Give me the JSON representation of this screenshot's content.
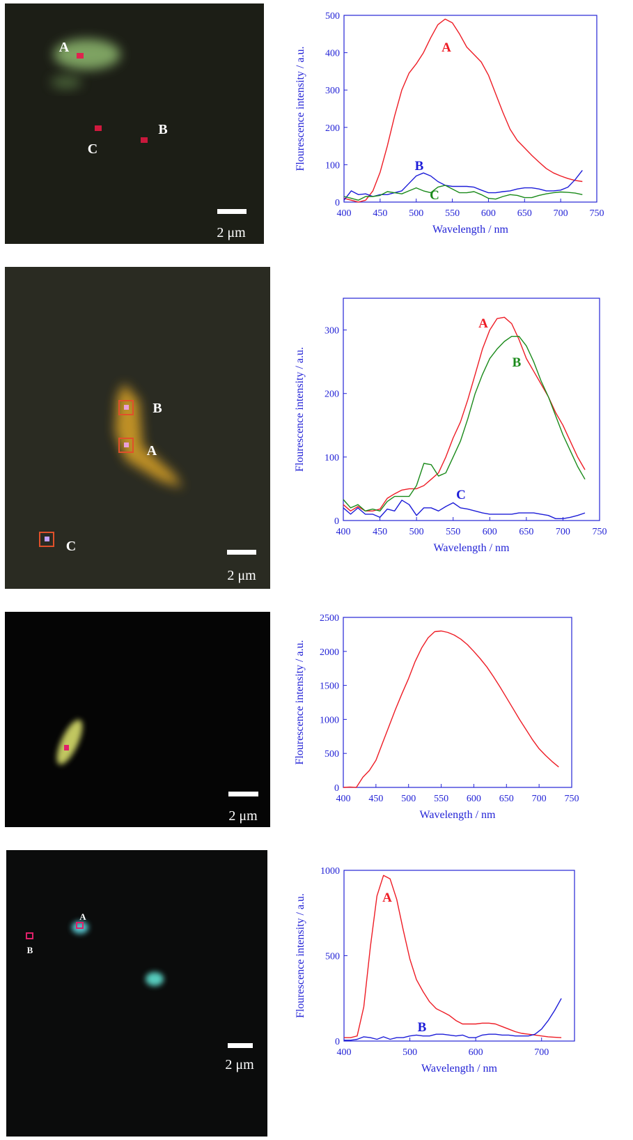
{
  "chart_data": [
    {
      "type": "line",
      "xlabel": "Wavelength / nm",
      "ylabel": "Flourescence intensity / a.u.",
      "x": [
        400,
        410,
        420,
        430,
        440,
        450,
        460,
        470,
        480,
        490,
        500,
        510,
        520,
        530,
        540,
        550,
        560,
        570,
        580,
        590,
        600,
        610,
        620,
        630,
        640,
        650,
        660,
        670,
        680,
        690,
        700,
        710,
        720,
        730
      ],
      "xlim": [
        400,
        750
      ],
      "ylim": [
        0,
        500
      ],
      "xticks": [
        400,
        450,
        500,
        550,
        600,
        650,
        700,
        750
      ],
      "yticks": [
        0,
        100,
        200,
        300,
        400,
        500
      ],
      "series": [
        {
          "name": "A",
          "color": "#ee1c25",
          "values": [
            10,
            5,
            0,
            5,
            30,
            80,
            150,
            230,
            300,
            345,
            370,
            400,
            440,
            475,
            490,
            480,
            450,
            415,
            395,
            375,
            340,
            290,
            240,
            195,
            165,
            145,
            125,
            107,
            90,
            78,
            70,
            63,
            58,
            55
          ]
        },
        {
          "name": "B",
          "color": "#1c1cd8",
          "values": [
            5,
            30,
            20,
            22,
            15,
            20,
            20,
            25,
            30,
            50,
            70,
            78,
            70,
            55,
            45,
            42,
            42,
            42,
            40,
            32,
            25,
            25,
            28,
            30,
            35,
            38,
            38,
            35,
            30,
            30,
            32,
            40,
            60,
            85
          ]
        },
        {
          "name": "C",
          "color": "#1a8a1a",
          "values": [
            15,
            10,
            5,
            15,
            15,
            18,
            28,
            25,
            22,
            30,
            38,
            30,
            25,
            40,
            45,
            35,
            25,
            25,
            28,
            20,
            10,
            8,
            15,
            20,
            18,
            12,
            12,
            18,
            22,
            25,
            27,
            26,
            24,
            20
          ]
        }
      ]
    },
    {
      "type": "line",
      "xlabel": "Wavelength / nm",
      "ylabel": "Flourescence intensity / a.u.",
      "x": [
        400,
        410,
        420,
        430,
        440,
        450,
        460,
        470,
        480,
        490,
        500,
        510,
        520,
        530,
        540,
        550,
        560,
        570,
        580,
        590,
        600,
        610,
        620,
        630,
        640,
        650,
        660,
        670,
        680,
        690,
        700,
        710,
        720,
        730
      ],
      "xlim": [
        400,
        750
      ],
      "ylim": [
        0,
        350
      ],
      "xticks": [
        400,
        450,
        500,
        550,
        600,
        650,
        700,
        750
      ],
      "yticks": [
        0,
        100,
        200,
        300
      ],
      "series": [
        {
          "name": "A",
          "color": "#ee1c25",
          "values": [
            25,
            15,
            22,
            15,
            15,
            18,
            35,
            42,
            48,
            50,
            50,
            55,
            65,
            75,
            100,
            130,
            155,
            190,
            230,
            270,
            300,
            318,
            320,
            310,
            285,
            255,
            235,
            215,
            195,
            170,
            150,
            125,
            100,
            80
          ]
        },
        {
          "name": "B",
          "color": "#1a8a1a",
          "values": [
            33,
            20,
            25,
            15,
            18,
            15,
            30,
            38,
            38,
            38,
            55,
            90,
            88,
            70,
            75,
            100,
            125,
            160,
            200,
            230,
            255,
            270,
            282,
            290,
            290,
            275,
            250,
            220,
            195,
            165,
            135,
            110,
            85,
            65
          ]
        },
        {
          "name": "C",
          "color": "#1c1cd8",
          "values": [
            20,
            10,
            20,
            10,
            10,
            5,
            18,
            15,
            32,
            25,
            8,
            20,
            20,
            15,
            22,
            28,
            20,
            18,
            15,
            12,
            10,
            10,
            10,
            10,
            12,
            12,
            12,
            10,
            8,
            3,
            3,
            5,
            8,
            12
          ]
        }
      ]
    },
    {
      "type": "line",
      "xlabel": "Wavelength / nm",
      "ylabel": "Flourescence intensity / a.u.",
      "x": [
        400,
        410,
        420,
        430,
        440,
        450,
        460,
        470,
        480,
        490,
        500,
        510,
        520,
        530,
        540,
        550,
        560,
        570,
        580,
        590,
        600,
        610,
        620,
        630,
        640,
        650,
        660,
        670,
        680,
        690,
        700,
        710,
        720,
        730
      ],
      "xlim": [
        400,
        750
      ],
      "ylim": [
        0,
        2500
      ],
      "xticks": [
        400,
        450,
        500,
        550,
        600,
        650,
        700,
        750
      ],
      "yticks": [
        0,
        500,
        1000,
        1500,
        2000,
        2500
      ],
      "series": [
        {
          "color": "#ee1c25",
          "values": [
            0,
            5,
            0,
            150,
            250,
            400,
            650,
            900,
            1150,
            1380,
            1600,
            1850,
            2050,
            2200,
            2290,
            2300,
            2280,
            2240,
            2180,
            2100,
            2000,
            1890,
            1770,
            1630,
            1480,
            1320,
            1160,
            1000,
            850,
            700,
            570,
            470,
            380,
            300
          ]
        }
      ]
    },
    {
      "type": "line",
      "xlabel": "Wavelength / nm",
      "ylabel": "Flourescence intensity / a.u.",
      "x": [
        400,
        410,
        420,
        430,
        440,
        450,
        460,
        470,
        480,
        490,
        500,
        510,
        520,
        530,
        540,
        550,
        560,
        570,
        580,
        590,
        600,
        610,
        620,
        630,
        640,
        650,
        660,
        670,
        680,
        690,
        700,
        710,
        720,
        730
      ],
      "xlim": [
        400,
        750
      ],
      "ylim": [
        0,
        1000
      ],
      "xticks": [
        400,
        500,
        600,
        700
      ],
      "yticks": [
        0,
        500,
        1000
      ],
      "series": [
        {
          "name": "A",
          "color": "#ee1c25",
          "values": [
            20,
            20,
            30,
            200,
            550,
            850,
            970,
            950,
            830,
            650,
            480,
            360,
            290,
            230,
            190,
            170,
            150,
            120,
            100,
            100,
            100,
            105,
            105,
            100,
            85,
            70,
            55,
            45,
            40,
            35,
            30,
            25,
            22,
            20
          ]
        },
        {
          "name": "B",
          "color": "#1c1cd8",
          "values": [
            5,
            5,
            10,
            25,
            20,
            10,
            25,
            10,
            20,
            20,
            30,
            35,
            30,
            30,
            40,
            40,
            35,
            30,
            35,
            20,
            20,
            35,
            40,
            40,
            35,
            35,
            30,
            30,
            30,
            40,
            70,
            120,
            180,
            250
          ]
        }
      ]
    }
  ],
  "images": [
    {
      "labels": [
        "A",
        "C",
        "B"
      ],
      "scale_bar": "2 μm"
    },
    {
      "labels": [
        "B",
        "A",
        "C"
      ],
      "scale_bar": "2 μm"
    },
    {
      "scale_bar": "2 μm"
    },
    {
      "labels": [
        "A",
        "B"
      ],
      "scale_bar": "2 μm"
    }
  ]
}
